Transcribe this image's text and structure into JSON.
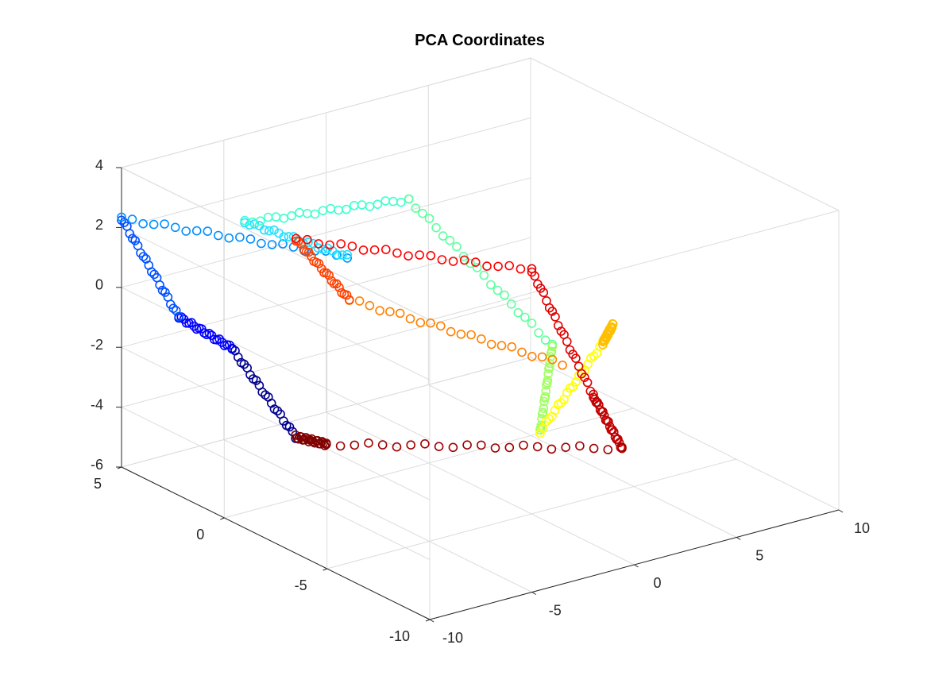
{
  "chart_data": {
    "type": "scatter",
    "subtype": "3d-scatter",
    "title": "PCA Coordinates",
    "xlabel": "",
    "ylabel": "",
    "zlabel": "",
    "xlim": [
      -10,
      10
    ],
    "ylim": [
      -10,
      5
    ],
    "zlim": [
      -6,
      4
    ],
    "x_ticks": [
      -10,
      -5,
      0,
      5,
      10
    ],
    "y_ticks": [
      -10,
      -5,
      0,
      5
    ],
    "z_ticks": [
      -6,
      -4,
      -2,
      0,
      2,
      4
    ],
    "x_tick_labels": [
      "-10",
      "-5",
      "0",
      "5",
      "10"
    ],
    "y_tick_labels": [
      "-10",
      "-5",
      "0",
      "5"
    ],
    "z_tick_labels": [
      "-6",
      "-4",
      "-2",
      "0",
      "2",
      "4"
    ],
    "grid": true,
    "box": "full",
    "marker": "open-circle",
    "colormap": "jet",
    "color_encodes": "point order along the curve",
    "segments": [
      {
        "color": "#00008f",
        "from": [
          -5.6,
          4.0,
          -2.5
        ],
        "to": [
          -3.5,
          3.0,
          -5.5
        ]
      },
      {
        "color": "#0000ff",
        "from": [
          -7.2,
          5.0,
          -1.5
        ],
        "to": [
          -5.6,
          4.0,
          -2.5
        ]
      },
      {
        "color": "#0050ff",
        "from": [
          -10.0,
          5.0,
          2.3
        ],
        "to": [
          -7.2,
          5.0,
          -1.5
        ]
      },
      {
        "color": "#008fff",
        "from": [
          -7.0,
          -3.0,
          3.2
        ],
        "to": [
          -10.0,
          5.0,
          2.3
        ]
      },
      {
        "color": "#20e0ff",
        "from": [
          -9.0,
          0.0,
          3.7
        ],
        "to": [
          -7.0,
          -3.0,
          3.2
        ]
      },
      {
        "color": "#40ffd0",
        "from": [
          -6.0,
          -5.0,
          5.6
        ],
        "to": [
          -9.0,
          0.0,
          3.7
        ]
      },
      {
        "color": "#60ffa0",
        "from": [
          -2.0,
          -8.0,
          1.0
        ],
        "to": [
          -6.0,
          -5.0,
          5.6
        ]
      },
      {
        "color": "#9fff60",
        "from": [
          -3.1,
          -8.5,
          -1.5
        ],
        "to": [
          -2.0,
          -8.0,
          1.0
        ]
      },
      {
        "color": "#ffff00",
        "from": [
          6.5,
          -2.0,
          -2.5
        ],
        "to": [
          -3.1,
          -8.5,
          -1.5
        ]
      },
      {
        "color": "#ffbf00",
        "from": [
          8.0,
          -1.0,
          -2.5
        ],
        "to": [
          6.5,
          -2.0,
          -2.5
        ]
      },
      {
        "color": "#ff8000",
        "from": [
          -7.4,
          -3.5,
          2.0
        ],
        "to": [
          -1.5,
          -8.0,
          0.3
        ]
      },
      {
        "color": "#ff4000",
        "from": [
          -8.5,
          -2.0,
          3.7
        ],
        "to": [
          -7.4,
          -3.5,
          2.0
        ]
      },
      {
        "color": "#ff0000",
        "from": [
          -3.0,
          -8.0,
          3.7
        ],
        "to": [
          -8.5,
          -2.0,
          3.7
        ]
      },
      {
        "color": "#df0000",
        "from": [
          -2.0,
          -10.0,
          0.0
        ],
        "to": [
          -3.0,
          -8.0,
          3.7
        ]
      },
      {
        "color": "#bf0000",
        "from": [
          -0.6,
          -10.0,
          -2.0
        ],
        "to": [
          -2.0,
          -10.0,
          0.0
        ]
      },
      {
        "color": "#9f0000",
        "from": [
          -3.0,
          2.0,
          -5.5
        ],
        "to": [
          -0.6,
          -10.0,
          -2.0
        ]
      },
      {
        "color": "#800000",
        "from": [
          -3.5,
          3.0,
          -5.5
        ],
        "to": [
          -3.0,
          2.0,
          -5.5
        ]
      }
    ],
    "points_per_segment": 22
  }
}
